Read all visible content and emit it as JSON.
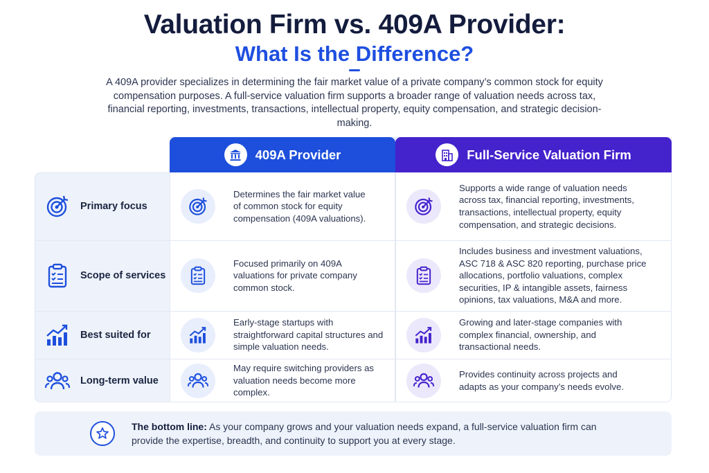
{
  "header": {
    "title_line1": "Valuation Firm vs. 409A Provider:",
    "title_line2": "What Is the Difference?",
    "intro": "A 409A provider specializes in determining the fair market value of a private company’s common stock for equity compensation purposes. A full-service valuation firm supports a broader range of valuation needs across tax, financial reporting, investments, transactions, intellectual property, equity compensation, and strategic decision-making."
  },
  "columns": {
    "provider": {
      "label": "409A Provider",
      "icon": "bank-icon",
      "color": "#1d4fdc"
    },
    "firm": {
      "label": "Full-Service Valuation Firm",
      "icon": "building-icon",
      "color": "#4422cc"
    }
  },
  "rows": [
    {
      "label": "Primary focus",
      "icon": "target-icon",
      "provider": "Determines the fair market value of common stock for equity compensation (409A valuations).",
      "firm": "Supports a wide range of valuation needs across tax, financial reporting, investments, transactions, intellectual property, equity compensation, and strategic decisions."
    },
    {
      "label": "Scope of services",
      "icon": "clipboard-icon",
      "provider": "Focused primarily on 409A valuations for private company common stock.",
      "firm": "Includes business and investment valuations, ASC 718 & ASC 820 reporting, purchase price allocations, portfolio valuations, complex securities, IP & intangible assets, fairness opinions, tax valuations, M&A and more."
    },
    {
      "label": "Best suited for",
      "icon": "growth-chart-icon",
      "provider": "Early-stage startups with straightforward capital structures and simple valuation needs.",
      "firm": "Growing and later-stage companies with complex financial, ownership, and transactional needs."
    },
    {
      "label": "Long-term value",
      "icon": "users-icon",
      "provider": "May require switching providers as valuation needs become more complex.",
      "firm": "Provides continuity across projects and adapts as your company’s needs evolve."
    }
  ],
  "bottom_line": {
    "label": "The bottom line:",
    "text": "As your company grows and your valuation needs expand, a full-service valuation firm can provide the expertise, breadth, and continuity to support you at every stage.",
    "icon": "star-icon"
  }
}
